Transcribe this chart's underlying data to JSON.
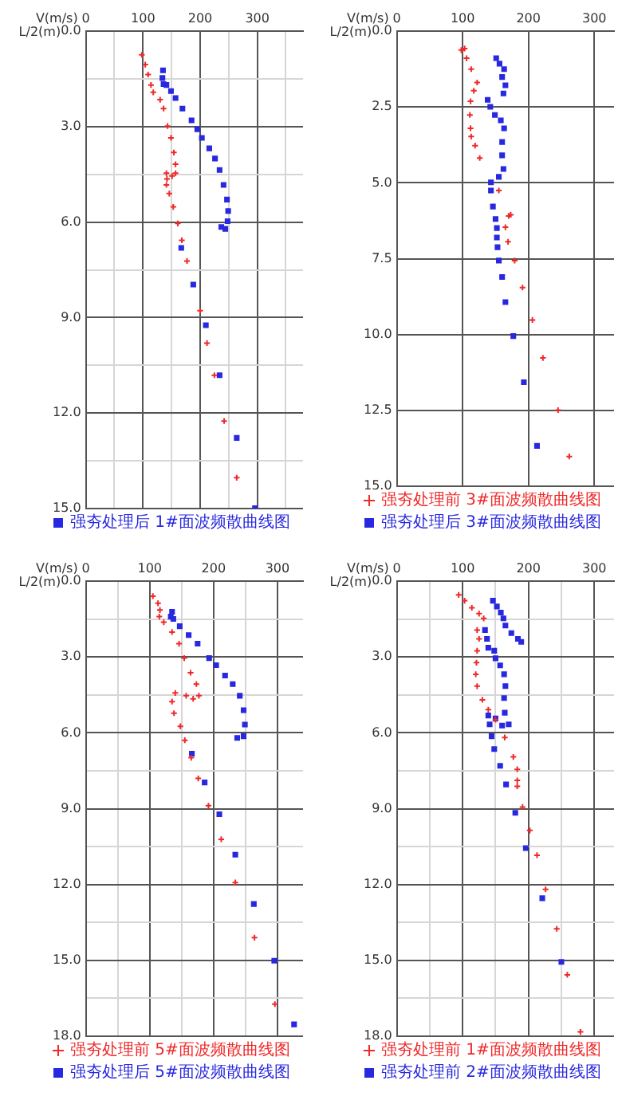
{
  "chart_data": [
    {
      "type": "scatter",
      "xlabel": "V(m/s)",
      "ylabel": "L/2(m)",
      "xlim": [
        0,
        380
      ],
      "ylim": [
        15,
        0
      ],
      "xticks": [
        0,
        {
          "value": 50,
          "label": null
        },
        100,
        {
          "value": 150,
          "label": null
        },
        200,
        {
          "value": 250,
          "label": null
        },
        300,
        {
          "value": 350,
          "label": null
        }
      ],
      "yticks": [
        {
          "value": 0,
          "label": "0.0"
        },
        {
          "value": 1.5,
          "label": null
        },
        {
          "value": 3,
          "label": "3.0"
        },
        {
          "value": 4.5,
          "label": null
        },
        {
          "value": 6,
          "label": "6.0"
        },
        {
          "value": 7.5,
          "label": null
        },
        {
          "value": 9,
          "label": "9.0"
        },
        {
          "value": 10.5,
          "label": null
        },
        {
          "value": 12,
          "label": "12.0"
        },
        {
          "value": 13.5,
          "label": null
        },
        {
          "value": 15,
          "label": "15.0"
        }
      ],
      "grid": true,
      "legend": "bottom",
      "series": [
        {
          "color": "#f02828",
          "marker": "cross",
          "x": [
            98,
            104,
            109,
            114,
            118,
            130,
            136,
            143,
            149,
            154,
            157,
            157,
            151,
            141,
            142,
            141,
            146,
            153,
            161,
            168,
            177,
            200,
            212,
            225,
            242,
            264
          ],
          "values": [
            0.74,
            1.05,
            1.36,
            1.69,
            1.92,
            2.15,
            2.43,
            2.98,
            3.35,
            3.81,
            4.18,
            4.46,
            4.55,
            4.46,
            4.64,
            4.83,
            5.1,
            5.52,
            6.04,
            6.57,
            7.22,
            8.78,
            9.8,
            10.81,
            12.25,
            14.03
          ]
        },
        {
          "name": "强夯处理后 1#面波频散曲线图",
          "color": "#2828e0",
          "marker": "square",
          "x": [
            135,
            134,
            136,
            141,
            149,
            157,
            169,
            185,
            195,
            203,
            216,
            226,
            234,
            241,
            247,
            249,
            248,
            244,
            237,
            167,
            188,
            210,
            234,
            264,
            296
          ],
          "values": [
            1.23,
            1.47,
            1.66,
            1.69,
            1.88,
            2.1,
            2.43,
            2.8,
            3.08,
            3.35,
            3.68,
            4.0,
            4.36,
            4.83,
            5.29,
            5.65,
            5.97,
            6.21,
            6.15,
            6.81,
            7.96,
            9.24,
            10.81,
            12.78,
            14.99
          ]
        }
      ]
    },
    {
      "type": "scatter",
      "xlabel": "V(m/s)",
      "ylabel": "L/2(m)",
      "xlim": [
        0,
        330
      ],
      "ylim": [
        15,
        0
      ],
      "xticks": [
        0,
        100,
        200,
        300
      ],
      "yticks": [
        {
          "value": 0,
          "label": "0.0"
        },
        2.5,
        {
          "value": 5,
          "label": "5.0"
        },
        7.5,
        {
          "value": 10,
          "label": "10.0"
        },
        12.5,
        {
          "value": 15,
          "label": "15.0"
        }
      ],
      "grid": true,
      "legend": "bottom",
      "series": [
        {
          "name": "强夯处理前 3#面波频散曲线图",
          "color": "#f02828",
          "marker": "cross",
          "x": [
            98,
            103,
            106,
            113,
            122,
            117,
            112,
            111,
            112,
            113,
            119,
            126,
            155,
            170,
            173,
            165,
            169,
            179,
            191,
            206,
            222,
            245,
            262
          ],
          "values": [
            0.62,
            0.57,
            0.89,
            1.25,
            1.69,
            1.96,
            2.31,
            2.76,
            3.2,
            3.47,
            3.77,
            4.18,
            5.25,
            6.09,
            6.05,
            6.46,
            6.94,
            7.56,
            8.45,
            9.52,
            10.77,
            12.49,
            14.02
          ]
        },
        {
          "name": "强夯处理后 3#面波频散曲线图",
          "color": "#2828e0",
          "marker": "square",
          "x": [
            151,
            156,
            163,
            160,
            165,
            162,
            138,
            142,
            149,
            158,
            163,
            160,
            160,
            162,
            155,
            143,
            143,
            146,
            150,
            152,
            152,
            153,
            155,
            160,
            165,
            177,
            193,
            213
          ],
          "values": [
            0.89,
            1.07,
            1.25,
            1.51,
            1.78,
            2.05,
            2.26,
            2.49,
            2.76,
            2.94,
            3.2,
            3.65,
            4.09,
            4.54,
            4.8,
            4.98,
            5.25,
            5.78,
            6.19,
            6.49,
            6.8,
            7.12,
            7.56,
            8.1,
            8.93,
            10.05,
            11.57,
            13.67
          ]
        }
      ]
    },
    {
      "type": "scatter",
      "xlabel": "V(m/s)",
      "ylabel": "L/2(m)",
      "xlim": [
        0,
        340
      ],
      "ylim": [
        18,
        0
      ],
      "xticks": [
        0,
        {
          "value": 50,
          "label": null
        },
        100,
        {
          "value": 150,
          "label": null
        },
        200,
        {
          "value": 250,
          "label": null
        },
        300
      ],
      "yticks": [
        {
          "value": 0,
          "label": "0.0"
        },
        {
          "value": 1.5,
          "label": null
        },
        {
          "value": 3,
          "label": "3.0"
        },
        {
          "value": 4.5,
          "label": null
        },
        {
          "value": 6,
          "label": "6.0"
        },
        {
          "value": 7.5,
          "label": null
        },
        {
          "value": 9,
          "label": "9.0"
        },
        {
          "value": 10.5,
          "label": null
        },
        {
          "value": 12,
          "label": "12.0"
        },
        {
          "value": 13.5,
          "label": null
        },
        {
          "value": 15,
          "label": "15.0"
        },
        {
          "value": 16.5,
          "label": null
        },
        {
          "value": 18,
          "label": "18.0"
        }
      ],
      "grid": true,
      "legend": "bottom",
      "series": [
        {
          "name": "强夯处理前 5#面波频散曲线图",
          "color": "#f02828",
          "marker": "cross",
          "x": [
            105,
            113,
            116,
            115,
            122,
            135,
            146,
            154,
            164,
            173,
            177,
            168,
            157,
            140,
            135,
            138,
            148,
            155,
            165,
            176,
            192,
            212,
            234,
            264,
            296
          ],
          "values": [
            0.59,
            0.87,
            1.14,
            1.4,
            1.62,
            2.01,
            2.47,
            3.04,
            3.62,
            4.07,
            4.53,
            4.65,
            4.53,
            4.42,
            4.76,
            5.22,
            5.74,
            6.29,
            6.98,
            7.8,
            8.88,
            10.21,
            11.92,
            14.1,
            16.73
          ]
        },
        {
          "name": "强夯处理后 5#面波频散曲线图",
          "color": "#2828e0",
          "marker": "square",
          "x": [
            135,
            133,
            137,
            147,
            161,
            175,
            193,
            204,
            218,
            230,
            241,
            247,
            249,
            247,
            237,
            166,
            186,
            209,
            234,
            263,
            295,
            326
          ],
          "values": [
            1.21,
            1.4,
            1.49,
            1.78,
            2.13,
            2.47,
            3.04,
            3.32,
            3.73,
            4.07,
            4.53,
            5.1,
            5.67,
            6.13,
            6.2,
            6.82,
            7.96,
            9.22,
            10.82,
            12.77,
            15.01,
            17.53
          ]
        }
      ]
    },
    {
      "type": "scatter",
      "xlabel": "V(m/s)",
      "ylabel": "L/2(m)",
      "xlim": [
        0,
        330
      ],
      "ylim": [
        18,
        0
      ],
      "xticks": [
        0,
        {
          "value": 50,
          "label": null
        },
        100,
        {
          "value": 150,
          "label": null
        },
        200,
        {
          "value": 250,
          "label": null
        },
        300
      ],
      "yticks": [
        {
          "value": 0,
          "label": "0.0"
        },
        {
          "value": 1.5,
          "label": null
        },
        {
          "value": 3,
          "label": "3.0"
        },
        {
          "value": 4.5,
          "label": null
        },
        {
          "value": 6,
          "label": "6.0"
        },
        {
          "value": 7.5,
          "label": null
        },
        {
          "value": 9,
          "label": "9.0"
        },
        {
          "value": 10.5,
          "label": null
        },
        {
          "value": 12,
          "label": "12.0"
        },
        {
          "value": 13.5,
          "label": null
        },
        {
          "value": 15,
          "label": "15.0"
        },
        {
          "value": 16.5,
          "label": null
        },
        {
          "value": 18,
          "label": "18.0"
        }
      ],
      "grid": true,
      "legend": "bottom",
      "series": [
        {
          "name": "强夯处理前 1#面波频散曲线图",
          "color": "#f02828",
          "marker": "cross",
          "x": [
            94,
            103,
            114,
            125,
            132,
            122,
            125,
            122,
            121,
            120,
            122,
            130,
            139,
            150,
            164,
            177,
            183,
            183,
            183,
            191,
            202,
            213,
            226,
            243,
            259,
            279
          ],
          "values": [
            0.54,
            0.77,
            1.05,
            1.28,
            1.47,
            1.93,
            2.28,
            2.75,
            3.22,
            3.68,
            4.15,
            4.69,
            5.08,
            5.48,
            6.18,
            6.95,
            7.44,
            7.88,
            8.11,
            8.93,
            9.86,
            10.84,
            12.19,
            13.75,
            15.57,
            17.83
          ]
        },
        {
          "name": "强夯处理前 2#面波频散曲线图",
          "color": "#2828e0",
          "marker": "square",
          "x": [
            146,
            152,
            158,
            162,
            165,
            174,
            184,
            189,
            134,
            137,
            139,
            148,
            150,
            157,
            163,
            165,
            163,
            164,
            170,
            160,
            150,
            139,
            141,
            144,
            148,
            157,
            166,
            180,
            196,
            221,
            250
          ],
          "values": [
            0.77,
            1.0,
            1.24,
            1.47,
            1.75,
            2.05,
            2.28,
            2.4,
            1.93,
            2.28,
            2.63,
            2.75,
            3.05,
            3.33,
            3.68,
            4.15,
            4.62,
            5.2,
            5.66,
            5.71,
            5.43,
            5.31,
            5.66,
            6.13,
            6.64,
            7.3,
            8.04,
            9.16,
            10.56,
            12.54,
            15.06
          ]
        }
      ]
    }
  ]
}
